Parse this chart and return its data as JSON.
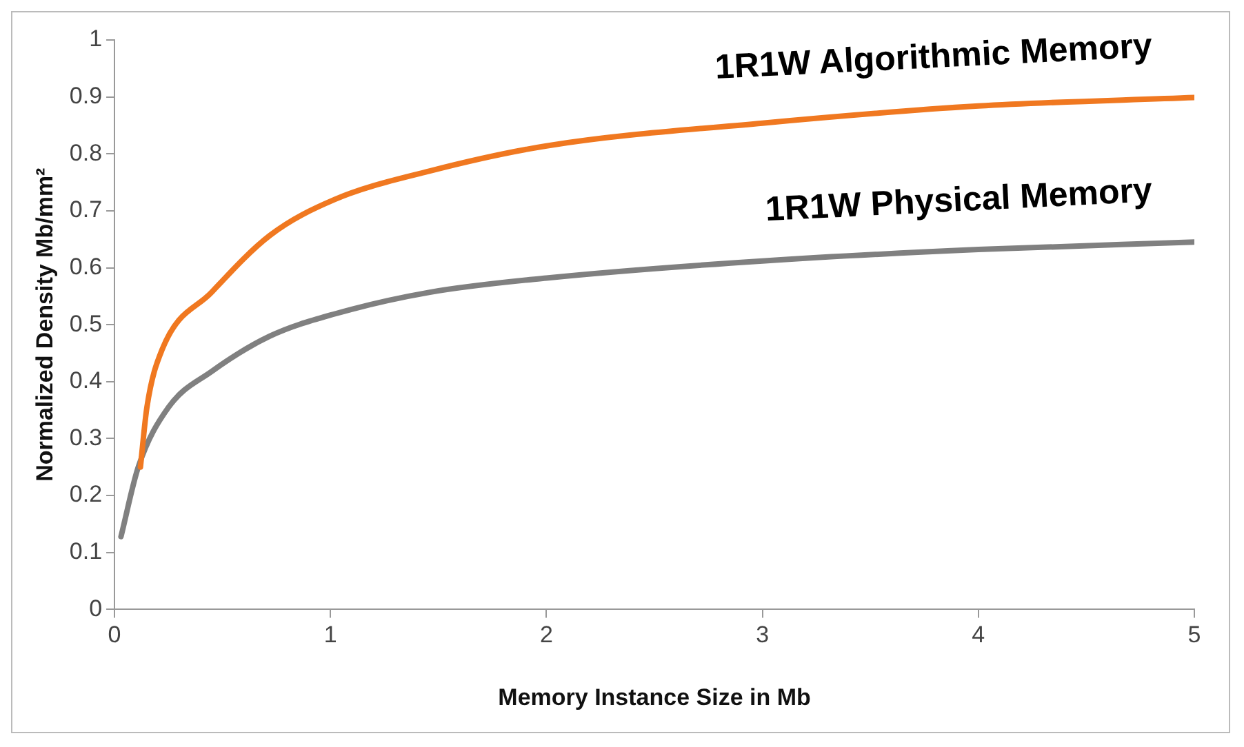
{
  "chart_data": {
    "type": "line",
    "xlabel": "Memory Instance Size in Mb",
    "ylabel": "Normalized Density Mb/mm²",
    "xlim": [
      0,
      5
    ],
    "xticks": [
      0,
      1,
      2,
      3,
      4,
      5
    ],
    "ylim": [
      0,
      1
    ],
    "yticks": [
      0,
      0.1,
      0.2,
      0.3,
      0.4,
      0.5,
      0.6,
      0.7,
      0.8,
      0.9,
      1
    ],
    "grid": false,
    "legend": false,
    "marker": "none",
    "line_style": "solid",
    "series": [
      {
        "name": "1R1W Algorithmic Memory",
        "color": "#f07820",
        "x": [
          0.12,
          0.15,
          0.22,
          0.45,
          0.72,
          1.02,
          1.46,
          2,
          3,
          4,
          5
        ],
        "values": [
          0.25,
          0.355,
          0.456,
          0.557,
          0.657,
          0.72,
          0.77,
          0.814,
          0.854,
          0.884,
          0.899
        ]
      },
      {
        "name": "1R1W Physical Memory",
        "color": "#808080",
        "x": [
          0.03,
          0.11,
          0.25,
          0.45,
          0.72,
          1.02,
          1.46,
          2,
          3,
          4,
          5
        ],
        "values": [
          0.128,
          0.25,
          0.355,
          0.418,
          0.48,
          0.519,
          0.557,
          0.582,
          0.612,
          0.632,
          0.645
        ]
      }
    ]
  }
}
